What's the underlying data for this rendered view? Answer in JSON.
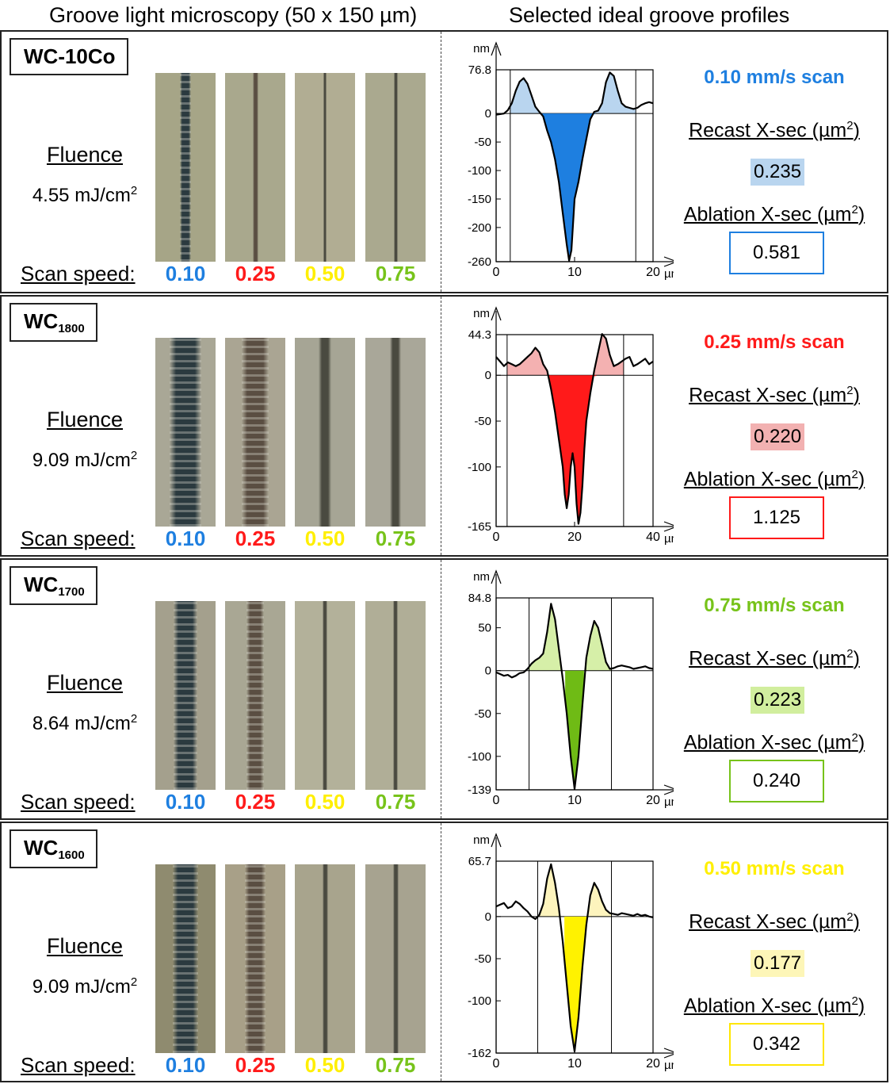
{
  "headers": {
    "left": "Groove light microscopy (50 x 150 µm)",
    "right": "Selected ideal groove profiles"
  },
  "colors": {
    "s010": "#1e7fe0",
    "s025": "#ff1a1a",
    "s050": "#ffef00",
    "s075": "#77c31a"
  },
  "panels": [
    {
      "sample": "WC-10Co",
      "sample_sub": "",
      "fluence_title": "Fluence",
      "fluence_value": "4.55 mJ/cm",
      "fluence_sup": "2",
      "scan_speed_label": "Scan speed:",
      "speeds": [
        "0.10",
        "0.25",
        "0.50",
        "0.75"
      ],
      "scan_title": "0.10 mm/s  scan",
      "scan_color": "#1e7fe0",
      "recast_bg": "#b9d5ef",
      "fill_dark": "#1e7fe0",
      "fill_light": "#b9d5ef",
      "recast_title": "Recast X-sec (µm",
      "recast_value": "0.235",
      "ablation_title": "Ablation X-sec (µm",
      "ablation_value": "0.581",
      "title_sup": "2",
      "title_close": ")",
      "micro_widths": [
        14,
        7,
        4,
        5
      ],
      "micro_bg": [
        "#a6a587",
        "#a9a88d",
        "#b1ad93",
        "#aaa98f"
      ],
      "chart_data": {
        "type": "line",
        "ylabel": "nm",
        "xlabel": "µm",
        "xlim": [
          0,
          20
        ],
        "ylim": [
          -260,
          76.8
        ],
        "y_ticks": [
          76.8,
          0,
          -50,
          -100,
          -150,
          -200,
          -260
        ],
        "x_ticks": [
          0,
          10,
          20
        ],
        "recast_bounds": [
          1.8,
          17.8
        ],
        "ablation_bounds": [
          5.9,
          12.6
        ],
        "x": [
          0,
          0.5,
          1.0,
          1.5,
          2.0,
          2.5,
          3.0,
          3.5,
          4.0,
          4.5,
          5.0,
          5.5,
          6.0,
          6.5,
          7.0,
          7.5,
          8.0,
          8.5,
          9.0,
          9.3,
          9.6,
          10.0,
          10.5,
          11.0,
          11.5,
          12.0,
          12.5,
          13.0,
          13.5,
          14.0,
          14.5,
          15.0,
          15.5,
          16.0,
          16.5,
          17.0,
          17.5,
          18.0,
          18.5,
          19.0,
          19.5,
          20.0
        ],
        "y": [
          -2,
          -1,
          0,
          6,
          18,
          40,
          56,
          62,
          52,
          32,
          12,
          3,
          -5,
          -30,
          -50,
          -80,
          -120,
          -175,
          -230,
          -258,
          -240,
          -150,
          -120,
          -80,
          -45,
          -10,
          3,
          5,
          18,
          55,
          72,
          66,
          40,
          18,
          12,
          10,
          8,
          10,
          15,
          18,
          20,
          18
        ]
      }
    },
    {
      "sample": "WC",
      "sample_sub": "1800",
      "fluence_title": "Fluence",
      "fluence_value": "9.09 mJ/cm",
      "fluence_sup": "2",
      "scan_speed_label": "Scan speed:",
      "speeds": [
        "0.10",
        "0.25",
        "0.50",
        "0.75"
      ],
      "scan_title": "0.25 mm/s  scan",
      "scan_color": "#ff1a1a",
      "recast_bg": "#f2b1b1",
      "fill_dark": "#ff1a1a",
      "fill_light": "#f4b1b1",
      "recast_title": "Recast X-sec (µm",
      "recast_value": "0.220",
      "ablation_title": "Ablation X-sec (µm",
      "ablation_value": "1.125",
      "title_sup": "2",
      "title_close": ")",
      "micro_widths": [
        40,
        34,
        16,
        14
      ],
      "micro_bg": [
        "#a9a796",
        "#aaa593",
        "#a6a595",
        "#a9a799"
      ],
      "chart_data": {
        "type": "line",
        "ylabel": "nm",
        "xlabel": "µm",
        "xlim": [
          0,
          40
        ],
        "ylim": [
          -165,
          44.3
        ],
        "y_ticks": [
          44.3,
          0,
          -50,
          -100,
          -165
        ],
        "x_ticks": [
          0,
          20,
          40
        ],
        "recast_bounds": [
          2.8,
          32.5
        ],
        "ablation_bounds": [
          13.5,
          25.5
        ],
        "x": [
          0,
          1,
          2,
          3,
          4,
          5,
          6,
          7,
          8,
          9,
          10,
          11,
          12,
          13,
          14,
          15,
          16,
          17,
          17.5,
          18,
          18.5,
          19,
          19.5,
          20,
          20.5,
          21,
          21.5,
          22,
          22.5,
          23,
          24,
          25,
          26,
          27,
          28,
          29,
          30,
          31,
          32,
          33,
          34,
          35,
          36,
          37,
          38,
          39,
          40
        ],
        "y": [
          20,
          15,
          10,
          14,
          12,
          10,
          12,
          16,
          20,
          24,
          30,
          25,
          12,
          5,
          -15,
          -40,
          -70,
          -100,
          -130,
          -145,
          -130,
          -100,
          -85,
          -100,
          -140,
          -162,
          -150,
          -120,
          -80,
          -50,
          -20,
          5,
          25,
          45,
          40,
          22,
          10,
          12,
          15,
          18,
          20,
          10,
          12,
          15,
          18,
          12,
          15
        ]
      }
    },
    {
      "sample": "WC",
      "sample_sub": "1700",
      "fluence_title": "Fluence",
      "fluence_value": "8.64 mJ/cm",
      "fluence_sup": "2",
      "scan_speed_label": "Scan speed:",
      "speeds": [
        "0.10",
        "0.25",
        "0.50",
        "0.75"
      ],
      "scan_title": "0.75 mm/s  scan",
      "scan_color": "#77c31a",
      "recast_bg": "#d1ee9e",
      "fill_dark": "#6fbb15",
      "fill_light": "#d6efa8",
      "recast_title": "Recast X-sec (µm",
      "recast_value": "0.223",
      "ablation_title": "Ablation X-sec (µm",
      "ablation_value": "0.240",
      "title_sup": "2",
      "title_close": ")",
      "micro_widths": [
        30,
        22,
        6,
        6
      ],
      "micro_bg": [
        "#a4a08d",
        "#a9a794",
        "#b3b19a",
        "#b0ae97"
      ],
      "chart_data": {
        "type": "line",
        "ylabel": "nm",
        "xlabel": "µm",
        "xlim": [
          0,
          20
        ],
        "ylim": [
          -139,
          84.8
        ],
        "y_ticks": [
          84.8,
          50,
          0,
          -50,
          -100,
          -139
        ],
        "x_ticks": [
          0,
          10,
          20
        ],
        "recast_bounds": [
          4.2,
          14.7
        ],
        "ablation_bounds": [
          8.8,
          11.2
        ],
        "x": [
          0,
          0.5,
          1.0,
          1.5,
          2.0,
          2.5,
          3.0,
          3.5,
          4.0,
          4.5,
          5.0,
          5.5,
          6.0,
          6.5,
          7.0,
          7.5,
          8.0,
          8.5,
          9.0,
          9.5,
          10.0,
          10.5,
          11.0,
          11.5,
          12.0,
          12.5,
          13.0,
          13.5,
          14.0,
          14.5,
          15.0,
          15.5,
          16.0,
          16.5,
          17.0,
          17.5,
          18.0,
          18.5,
          19.0,
          19.5,
          20.0
        ],
        "y": [
          -2,
          -4,
          -6,
          -5,
          -8,
          -6,
          -3,
          -2,
          2,
          8,
          12,
          15,
          20,
          45,
          78,
          60,
          25,
          -10,
          -50,
          -100,
          -138,
          -100,
          -40,
          15,
          40,
          58,
          50,
          30,
          10,
          2,
          3,
          5,
          6,
          5,
          4,
          2,
          3,
          4,
          5,
          3,
          2
        ]
      }
    },
    {
      "sample": "WC",
      "sample_sub": "1600",
      "fluence_title": "Fluence",
      "fluence_value": "9.09 mJ/cm",
      "fluence_sup": "2",
      "scan_speed_label": "Scan speed:",
      "speeds": [
        "0.10",
        "0.25",
        "0.50",
        "0.75"
      ],
      "scan_title": "0.50 mm/s  scan",
      "scan_color": "#ffef00",
      "recast_bg": "#fdf6b8",
      "fill_dark": "#fff200",
      "fill_light": "#fdf4bd",
      "recast_title": "Recast X-sec (µm",
      "recast_value": "0.177",
      "ablation_title": "Ablation X-sec (µm",
      "ablation_value": "0.342",
      "title_sup": "2",
      "title_close": ")",
      "micro_widths": [
        32,
        26,
        7,
        7
      ],
      "micro_bg": [
        "#8f8b6f",
        "#a8a088",
        "#a8a48d",
        "#a7a390"
      ],
      "chart_data": {
        "type": "line",
        "ylabel": "nm",
        "xlabel": "µm",
        "xlim": [
          0,
          20
        ],
        "ylim": [
          -162,
          65.7
        ],
        "y_ticks": [
          65.7,
          0,
          -50,
          -100,
          -162
        ],
        "x_ticks": [
          0,
          10,
          20
        ],
        "recast_bounds": [
          5.3,
          14.7
        ],
        "ablation_bounds": [
          8.7,
          11.6
        ],
        "x": [
          0,
          0.5,
          1.0,
          1.5,
          2.0,
          2.5,
          3.0,
          3.5,
          4.0,
          4.5,
          5.0,
          5.5,
          6.0,
          6.5,
          7.0,
          7.5,
          8.0,
          8.5,
          9.0,
          9.5,
          10.0,
          10.5,
          11.0,
          11.5,
          12.0,
          12.5,
          13.0,
          13.5,
          14.0,
          14.5,
          15.0,
          15.5,
          16.0,
          16.5,
          17.0,
          17.5,
          18.0,
          18.5,
          19.0,
          19.5,
          20.0
        ],
        "y": [
          12,
          14,
          16,
          10,
          12,
          18,
          15,
          10,
          6,
          0,
          -3,
          2,
          15,
          45,
          62,
          40,
          10,
          -30,
          -80,
          -130,
          -160,
          -120,
          -60,
          -10,
          25,
          40,
          32,
          18,
          8,
          4,
          3,
          2,
          4,
          3,
          2,
          1,
          3,
          1,
          2,
          0,
          -1
        ]
      }
    }
  ]
}
